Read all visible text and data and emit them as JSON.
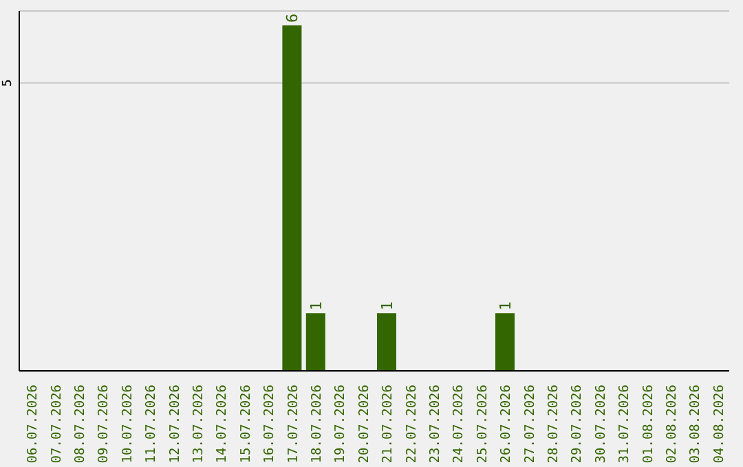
{
  "chart_data": {
    "type": "bar",
    "categories": [
      "06.07.2026",
      "07.07.2026",
      "08.07.2026",
      "09.07.2026",
      "10.07.2026",
      "11.07.2026",
      "12.07.2026",
      "13.07.2026",
      "14.07.2026",
      "15.07.2026",
      "16.07.2026",
      "17.07.2026",
      "18.07.2026",
      "19.07.2026",
      "20.07.2026",
      "21.07.2026",
      "22.07.2026",
      "23.07.2026",
      "24.07.2026",
      "25.07.2026",
      "26.07.2026",
      "27.07.2026",
      "28.07.2026",
      "29.07.2026",
      "30.07.2026",
      "31.07.2026",
      "01.08.2026",
      "02.08.2026",
      "03.08.2026",
      "04.08.2026"
    ],
    "values": [
      0,
      0,
      0,
      0,
      0,
      0,
      0,
      0,
      0,
      0,
      0,
      6,
      1,
      0,
      0,
      1,
      0,
      0,
      0,
      0,
      1,
      0,
      0,
      0,
      0,
      0,
      0,
      0,
      0,
      0
    ],
    "value_labels": [
      null,
      null,
      null,
      null,
      null,
      null,
      null,
      null,
      null,
      null,
      null,
      "6",
      "1",
      null,
      null,
      "1",
      null,
      null,
      null,
      null,
      "1",
      null,
      null,
      null,
      null,
      null,
      null,
      null,
      null,
      null
    ],
    "color": "#336600",
    "ylim": [
      0,
      6.25
    ],
    "yticks": [
      5
    ],
    "grid": "y",
    "legend": false
  }
}
